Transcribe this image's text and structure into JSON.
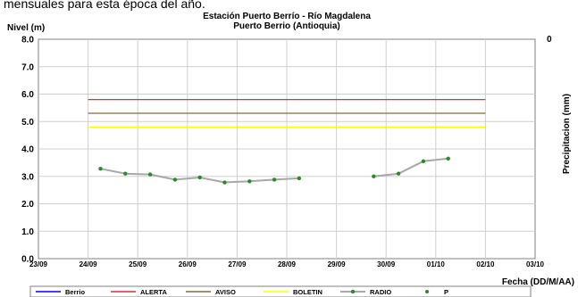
{
  "top_text": "mensuales para esta época del año.",
  "chart_data": {
    "type": "line",
    "title": "Estación Puerto Berrío - Río Magdalena",
    "subtitle": "Puerto Berrio (Antioquia)",
    "ylabel": "Nivel (m)",
    "y2label": "Precipitacion (mm)",
    "y2_top_tick": "0",
    "xlabel": "Fecha (DD/M/AA)",
    "ylim": [
      0,
      8
    ],
    "yticks": [
      "0.0",
      "1.0",
      "2.0",
      "3.0",
      "4.0",
      "5.0",
      "6.0",
      "7.0",
      "8.0"
    ],
    "xticks": [
      "23/09",
      "24/09",
      "25/09",
      "26/09",
      "27/09",
      "28/09",
      "29/09",
      "30/09",
      "01/10",
      "02/10",
      "03/10"
    ],
    "grid": true,
    "legend_position": "bottom",
    "thresholds": [
      {
        "name": "ALERTA",
        "value": 5.8,
        "color": "#e03030",
        "x_from": 1,
        "x_to": 9
      },
      {
        "name": "AVISO",
        "value": 5.3,
        "color": "#8b6a2a",
        "x_from": 1,
        "x_to": 9
      },
      {
        "name": "BOLETIN",
        "value": 4.8,
        "color": "#ffff00",
        "x_from": 1,
        "x_to": 9
      }
    ],
    "series": [
      {
        "name": "RADIO",
        "color": "#a8a8a8",
        "marker_color": "#2a8a2a",
        "segments": [
          [
            [
              1.25,
              3.28
            ],
            [
              1.75,
              3.1
            ],
            [
              2.25,
              3.07
            ],
            [
              2.75,
              2.88
            ],
            [
              3.25,
              2.96
            ],
            [
              3.75,
              2.78
            ],
            [
              4.25,
              2.82
            ],
            [
              4.75,
              2.88
            ],
            [
              5.25,
              2.93
            ]
          ],
          [
            [
              6.75,
              3.0
            ],
            [
              7.25,
              3.1
            ],
            [
              7.75,
              3.55
            ],
            [
              8.25,
              3.65
            ]
          ]
        ]
      }
    ],
    "legend": [
      {
        "name": "Berrio",
        "color": "#0000ff",
        "style": "line"
      },
      {
        "name": "ALERTA",
        "color": "#e03030",
        "style": "line"
      },
      {
        "name": "AVISO",
        "color": "#8b6a2a",
        "style": "line"
      },
      {
        "name": "BOLETIN",
        "color": "#ffff00",
        "style": "line"
      },
      {
        "name": "RADIO",
        "color": "#a8a8a8",
        "marker_color": "#2a8a2a",
        "style": "line-marker"
      },
      {
        "name": "P",
        "color": "#2a8a2a",
        "style": "marker"
      }
    ]
  }
}
